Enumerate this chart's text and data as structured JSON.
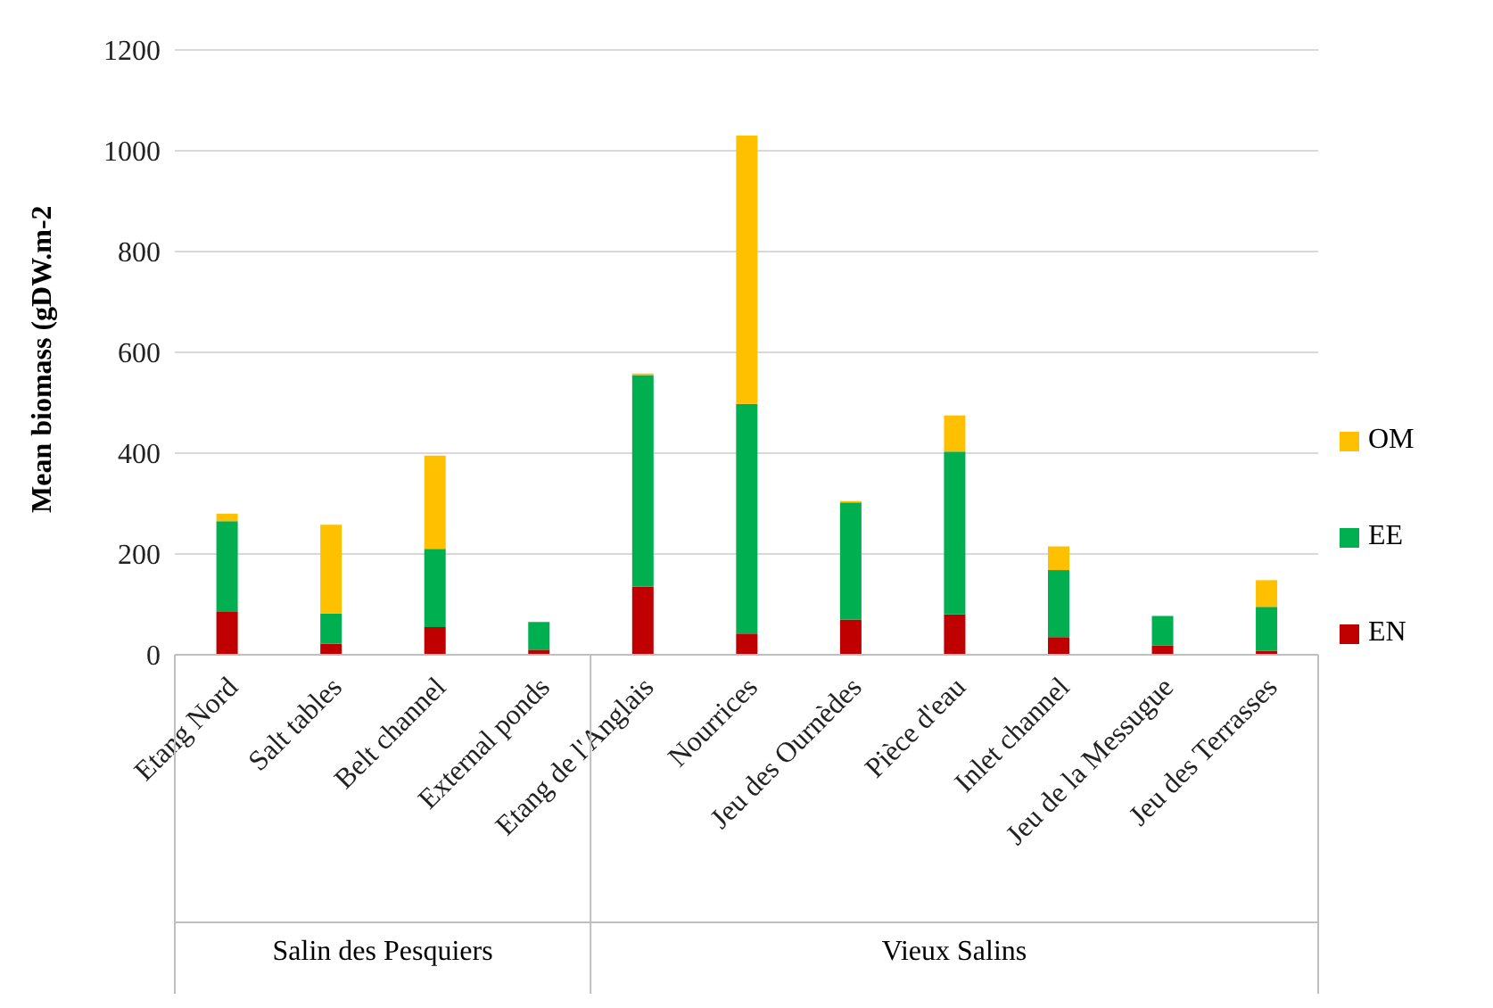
{
  "chart_data": {
    "type": "bar",
    "stacked": true,
    "ylabel": "Mean biomass (gDW.m-2",
    "categories": [
      "Etang Nord",
      "Salt tables",
      "Belt channel",
      "External ponds",
      "Etang de l'Anglais",
      "Nourrices",
      "Jeu des Ournèdes",
      "Pièce d'eau",
      "Inlet channel",
      "Jeu de la Messugue",
      "Jeu des Terrasses"
    ],
    "series": [
      {
        "name": "EN",
        "color": "#c00000",
        "values": [
          85,
          22,
          55,
          10,
          135,
          42,
          70,
          80,
          35,
          18,
          8
        ]
      },
      {
        "name": "EE",
        "color": "#00b050",
        "values": [
          180,
          60,
          155,
          55,
          420,
          456,
          232,
          323,
          133,
          59,
          87
        ]
      },
      {
        "name": "OM",
        "color": "#ffc000",
        "values": [
          15,
          176,
          185,
          0,
          3,
          532,
          3,
          72,
          47,
          0,
          53
        ]
      }
    ],
    "ylim": [
      0,
      1200
    ],
    "yticks": [
      0,
      200,
      400,
      600,
      800,
      1000,
      1200
    ],
    "grid": "y",
    "legend": "right",
    "annotations": [
      "Salin des Pesquiers",
      "Vieux Salins"
    ]
  }
}
